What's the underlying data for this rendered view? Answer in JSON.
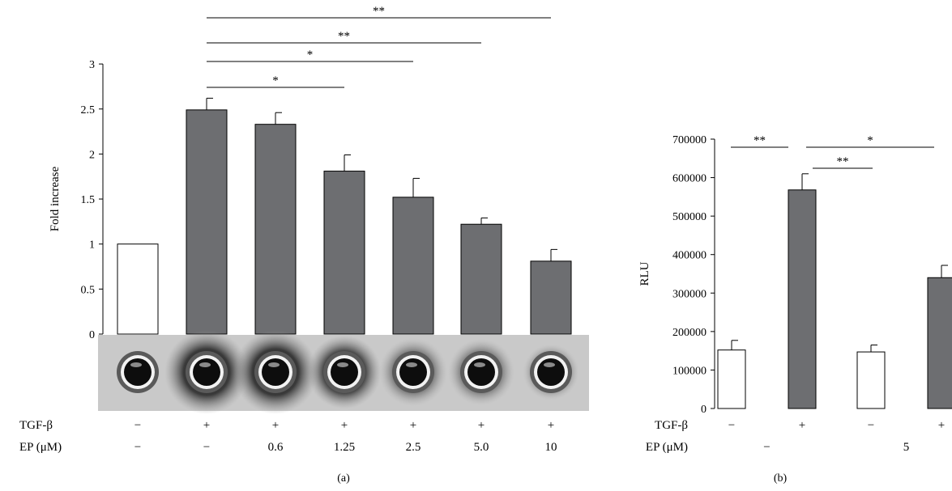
{
  "chart_data": [
    {
      "panel": "(a)",
      "type": "bar",
      "ylabel": "Fold increase",
      "ylim": [
        0,
        3
      ],
      "yticks": [
        "0",
        "0.5",
        "1",
        "1.5",
        "2",
        "2.5",
        "3"
      ],
      "values": [
        1.0,
        2.49,
        2.33,
        1.81,
        1.52,
        1.22,
        0.81
      ],
      "errors": [
        0.0,
        0.13,
        0.13,
        0.18,
        0.21,
        0.07,
        0.13
      ],
      "bar_colors": [
        "#ffffff",
        "#6d6e71",
        "#6d6e71",
        "#6d6e71",
        "#6d6e71",
        "#6d6e71",
        "#6d6e71"
      ],
      "row_labels": [
        "TGF-β",
        "EP (μM)"
      ],
      "tgf_row": [
        "−",
        "+",
        "+",
        "+",
        "+",
        "+",
        "+"
      ],
      "ep_row": [
        "−",
        "−",
        "0.6",
        "1.25",
        "2.5",
        "5.0",
        "10"
      ],
      "significance": [
        {
          "from": 1,
          "to": 6,
          "label": "**"
        },
        {
          "from": 1,
          "to": 5,
          "label": "**"
        },
        {
          "from": 1,
          "to": 4,
          "label": "*"
        },
        {
          "from": 1,
          "to": 3,
          "label": "*"
        }
      ],
      "image_strip": "zymography wells"
    },
    {
      "panel": "(b)",
      "type": "bar",
      "ylabel": "RLU",
      "ylim": [
        0,
        700000
      ],
      "yticks": [
        "0",
        "100000",
        "200000",
        "300000",
        "400000",
        "500000",
        "600000",
        "700000"
      ],
      "values": [
        152000,
        568000,
        147000,
        340000
      ],
      "errors": [
        25000,
        42000,
        18000,
        32000
      ],
      "bar_colors": [
        "#ffffff",
        "#6d6e71",
        "#ffffff",
        "#6d6e71"
      ],
      "row_labels": [
        "TGF-β",
        "EP (μM)"
      ],
      "tgf_row": [
        "−",
        "+",
        "−",
        "+"
      ],
      "ep_groups": [
        {
          "label": "−",
          "from": 0,
          "to": 1
        },
        {
          "label": "5",
          "from": 2,
          "to": 3
        }
      ],
      "significance": [
        {
          "from": 0,
          "to": 1,
          "label": "**"
        },
        {
          "from": 1,
          "to": 3,
          "label": "*"
        },
        {
          "from": 1,
          "to": 2,
          "label": "**"
        }
      ]
    }
  ]
}
